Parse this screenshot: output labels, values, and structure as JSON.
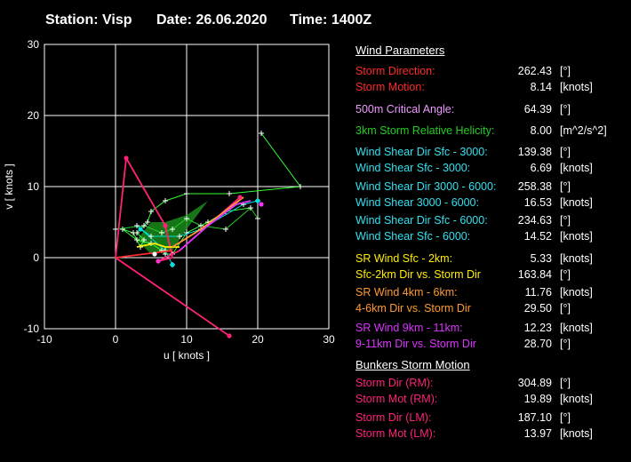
{
  "header": {
    "station": "Station: Visp",
    "date": "Date: 26.06.2020",
    "time": "Time: 1400Z"
  },
  "wind_parameters_title": "Wind Parameters",
  "bunkers_title": "Bunkers Storm Motion",
  "params": [
    {
      "label": "Storm Direction:",
      "value": "262.43",
      "unit": "[°]",
      "color": "#ff2a2a"
    },
    {
      "label": "Storm Motion:",
      "value": "8.14",
      "unit": "[knots]",
      "color": "#ff2a2a"
    },
    {
      "label": "500m Critical Angle:",
      "value": "64.39",
      "unit": "[°]",
      "color": "#ee99ff"
    },
    {
      "label": "3km Storm Relative Helicity:",
      "value": "8.00",
      "unit": "[m^2/s^2]",
      "color": "#22cc22"
    },
    {
      "label": "Wind Shear Dir Sfc - 3000:",
      "value": "139.38",
      "unit": "[°]",
      "color": "#33e0ee"
    },
    {
      "label": "Wind Shear Sfc - 3000:",
      "value": "6.69",
      "unit": "[knots]",
      "color": "#33e0ee"
    },
    {
      "label": "Wind Shear Dir 3000 - 6000:",
      "value": "258.38",
      "unit": "[°]",
      "color": "#33e0ee"
    },
    {
      "label": "Wind Shear 3000 - 6000:",
      "value": "16.53",
      "unit": "[knots]",
      "color": "#33e0ee"
    },
    {
      "label": "Wind Shear Dir Sfc - 6000:",
      "value": "234.63",
      "unit": "[°]",
      "color": "#33e0ee"
    },
    {
      "label": "Wind Shear Sfc - 6000:",
      "value": "14.52",
      "unit": "[knots]",
      "color": "#33e0ee"
    },
    {
      "label": "SR Wind Sfc - 2km:",
      "value": "5.33",
      "unit": "[knots]",
      "color": "#ffee00"
    },
    {
      "label": "Sfc-2km Dir vs. Storm Dir",
      "value": "163.84",
      "unit": "[°]",
      "color": "#ffee00"
    },
    {
      "label": "SR Wind 4km - 6km:",
      "value": "11.76",
      "unit": "[knots]",
      "color": "#ff9933"
    },
    {
      "label": "4-6km Dir vs. Storm Dir",
      "value": "29.50",
      "unit": "[°]",
      "color": "#ff9933"
    },
    {
      "label": "SR Wind 9km - 11km:",
      "value": "12.23",
      "unit": "[knots]",
      "color": "#dd33ff"
    },
    {
      "label": "9-11km Dir vs. Storm Dir",
      "value": "28.70",
      "unit": "[°]",
      "color": "#dd33ff"
    }
  ],
  "bunkers": [
    {
      "label": "Storm Dir (RM):",
      "value": "304.89",
      "unit": "[°]",
      "color": "#ff2277"
    },
    {
      "label": "Storm Mot (RM):",
      "value": "19.89",
      "unit": "[knots]",
      "color": "#ff2277"
    },
    {
      "label": "Storm Dir (LM):",
      "value": "187.10",
      "unit": "[°]",
      "color": "#ff2277"
    },
    {
      "label": "Storm Mot (LM):",
      "value": "13.97",
      "unit": "[knots]",
      "color": "#ff2277"
    }
  ],
  "chart_data": {
    "type": "line",
    "title": "",
    "xlabel": "u  [ knots ]",
    "ylabel": "v  [ knots ]",
    "xlim": [
      -10,
      30
    ],
    "ylim": [
      -10,
      30
    ],
    "xticks": [
      -10,
      0,
      10,
      20,
      30
    ],
    "yticks": [
      -10,
      0,
      10,
      20,
      30
    ],
    "grid": true,
    "series": [
      {
        "color": "#33ff33",
        "markers": true,
        "values": [
          [
            20.5,
            17.5
          ],
          [
            26,
            10
          ],
          [
            16,
            9
          ],
          [
            10,
            9
          ],
          [
            7,
            8
          ],
          [
            5,
            6.5
          ],
          [
            4.5,
            5
          ],
          [
            3,
            3.5
          ],
          [
            4,
            2.5
          ],
          [
            3.5,
            1.5
          ],
          [
            2.5,
            3.5
          ],
          [
            1,
            4
          ],
          [
            3,
            2.5
          ],
          [
            5,
            2
          ],
          [
            6.5,
            1
          ],
          [
            7,
            0.5
          ],
          [
            8,
            0.5
          ],
          [
            10,
            3.5
          ],
          [
            13,
            5
          ],
          [
            15.5,
            6.5
          ],
          [
            19,
            7
          ]
        ]
      },
      {
        "color": "#22cc22",
        "markers": true,
        "values": [
          [
            20,
            5.5
          ],
          [
            19,
            7
          ],
          [
            15.5,
            4
          ],
          [
            12,
            4.5
          ],
          [
            10,
            5.5
          ],
          [
            8,
            4
          ],
          [
            6.5,
            3.5
          ],
          [
            4,
            4.5
          ],
          [
            0,
            4
          ]
        ]
      },
      {
        "color": "#00dddd",
        "markers": true,
        "values": [
          [
            20,
            8
          ],
          [
            18,
            7.5
          ],
          [
            12,
            4
          ],
          [
            9,
            3
          ],
          [
            5,
            3
          ],
          [
            3,
            4.5
          ],
          [
            7,
            1
          ],
          [
            8,
            -1
          ]
        ]
      },
      {
        "color": "#ff2277",
        "markers": false,
        "values": [
          [
            0,
            0
          ],
          [
            16,
            -11
          ],
          [
            0,
            0
          ],
          [
            1.5,
            14
          ],
          [
            7,
            4.5
          ],
          [
            8,
            0
          ],
          [
            6,
            -0.5
          ],
          [
            9,
            1
          ],
          [
            17.5,
            8.5
          ]
        ]
      },
      {
        "color": "#ffee00",
        "markers": false,
        "values": [
          [
            3,
            1.5
          ],
          [
            5.5,
            2
          ],
          [
            7,
            1.5
          ],
          [
            8,
            1.5
          ],
          [
            9,
            1.5
          ]
        ]
      },
      {
        "color": "#ff9933",
        "markers": false,
        "values": [
          [
            8,
            1.5
          ],
          [
            12,
            4
          ],
          [
            16,
            7
          ],
          [
            18,
            8.5
          ]
        ]
      },
      {
        "color": "#dd33ff",
        "markers": false,
        "values": [
          [
            9,
            1
          ],
          [
            13,
            4.5
          ],
          [
            17,
            7.5
          ],
          [
            19,
            8
          ]
        ]
      },
      {
        "color": "#ff2a2a",
        "markers": false,
        "values": [
          [
            0,
            0
          ],
          [
            8,
            1
          ]
        ]
      }
    ],
    "points": [
      {
        "x": 1.5,
        "y": 14,
        "color": "#ff2277"
      },
      {
        "x": 7,
        "y": 4.5,
        "color": "#ff2277"
      },
      {
        "x": 16,
        "y": -11,
        "color": "#ff2277"
      },
      {
        "x": 3.5,
        "y": 4,
        "color": "#00dddd"
      },
      {
        "x": 8,
        "y": -1,
        "color": "#00dddd"
      },
      {
        "x": 20,
        "y": 8,
        "color": "#00dddd"
      },
      {
        "x": 5.5,
        "y": 0.5,
        "color": "#ffffff"
      },
      {
        "x": 6,
        "y": -0.5,
        "color": "#ff33cc"
      },
      {
        "x": 17.5,
        "y": 8.5,
        "color": "#ff2277"
      },
      {
        "x": 20.5,
        "y": 7.5,
        "color": "#ff33ff"
      }
    ],
    "hodograph_fill": [
      [
        3,
        2.5
      ],
      [
        5,
        5
      ],
      [
        7,
        5
      ],
      [
        10,
        6
      ],
      [
        13,
        8
      ],
      [
        10,
        4
      ],
      [
        8,
        1
      ],
      [
        5,
        0.5
      ]
    ]
  }
}
